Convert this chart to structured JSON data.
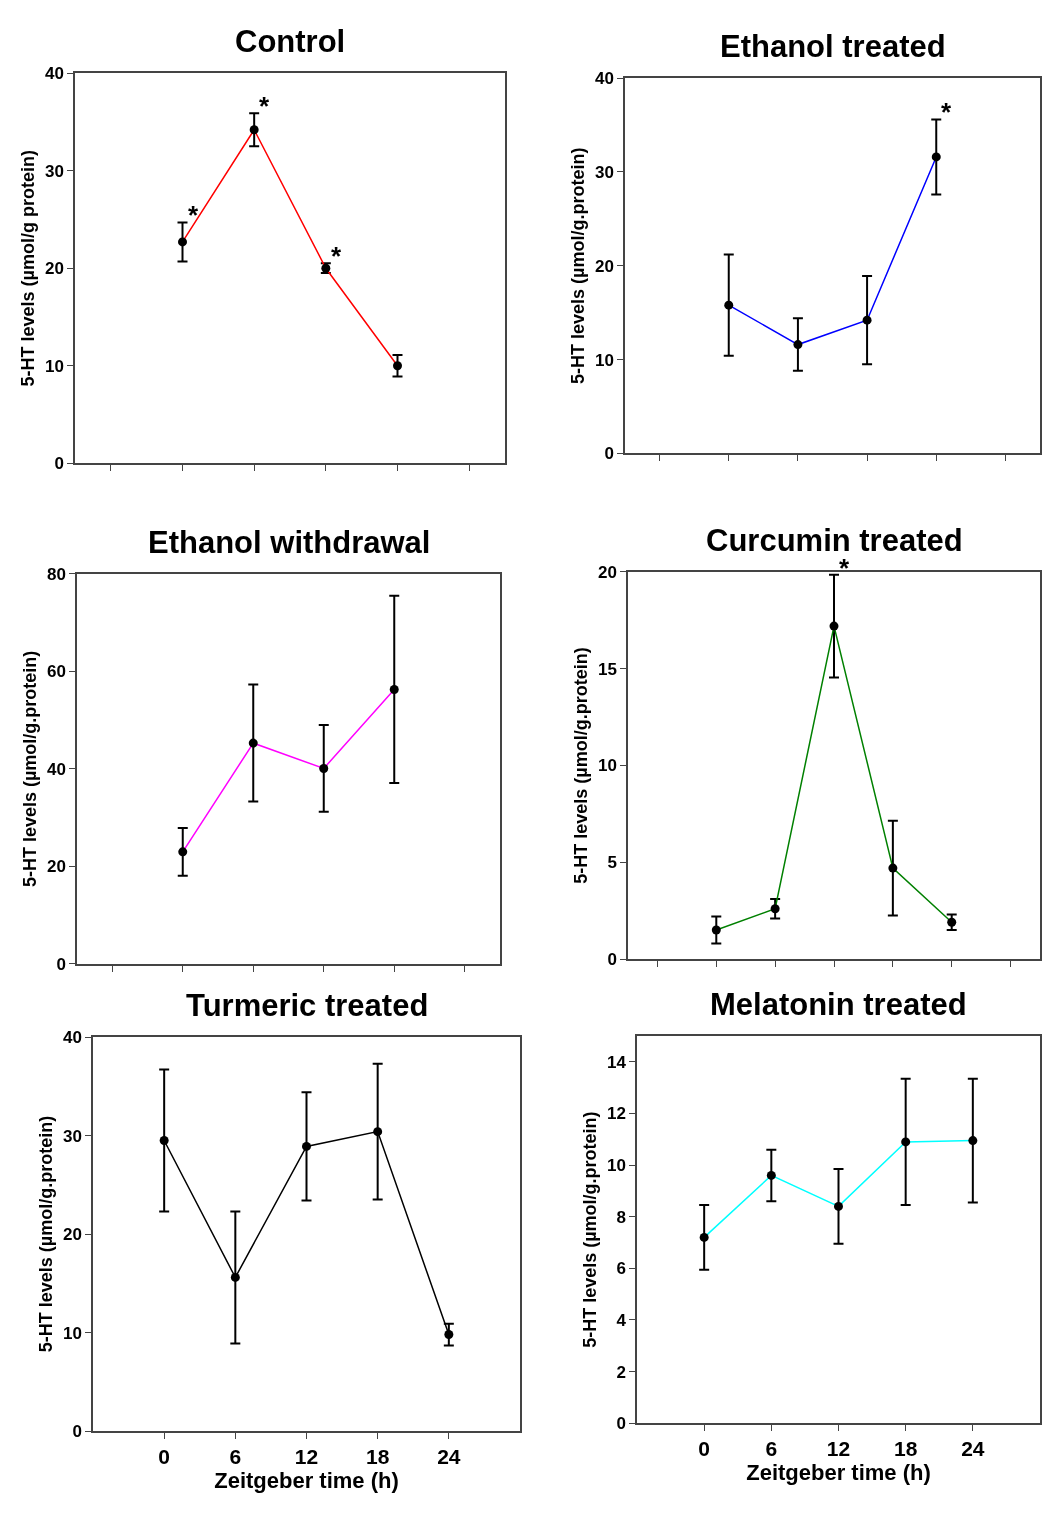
{
  "chart_data": [
    {
      "type": "line",
      "title": "Control",
      "ylabel": "5-HT levels (µmol/g protein)",
      "categories": [
        null,
        null,
        null,
        null,
        null,
        null
      ],
      "values": [
        null,
        22.7,
        34.2,
        20.0,
        10.0,
        null
      ],
      "errors": [
        null,
        2.0,
        1.7,
        0.5,
        1.1,
        null
      ],
      "value_labels": [
        null,
        "*",
        "*",
        "*",
        null,
        null
      ],
      "color": "#ff0000",
      "marker": "circle",
      "ylim": [
        0,
        40
      ],
      "yticks": [
        0,
        10,
        20,
        30,
        40
      ],
      "tick_labels": "y"
    },
    {
      "type": "line",
      "title": "Ethanol treated",
      "ylabel": "5-HT levels (µmol/g.protein)",
      "categories": [
        null,
        null,
        null,
        null,
        null,
        null
      ],
      "values": [
        null,
        15.8,
        11.6,
        14.2,
        31.6,
        null
      ],
      "errors": [
        null,
        5.4,
        2.8,
        4.7,
        4.0,
        null
      ],
      "value_labels": [
        null,
        null,
        null,
        null,
        "*",
        null
      ],
      "color": "#0000ff",
      "marker": "circle",
      "ylim": [
        0,
        40
      ],
      "yticks": [
        0,
        10,
        20,
        30,
        40
      ],
      "tick_labels": "y"
    },
    {
      "type": "line",
      "title": "Ethanol withdrawal",
      "ylabel": "5-HT levels (µmol/g.protein)",
      "categories": [
        null,
        null,
        null,
        null,
        null,
        null
      ],
      "values": [
        null,
        23.0,
        45.3,
        40.1,
        56.3,
        null
      ],
      "errors": [
        null,
        4.9,
        12.0,
        8.9,
        19.2,
        null
      ],
      "color": "#ff00ff",
      "marker": "circle",
      "ylim": [
        0,
        80
      ],
      "yticks": [
        0,
        20,
        40,
        60,
        80
      ],
      "tick_labels": "y"
    },
    {
      "type": "line",
      "title": "Curcumin treated",
      "ylabel": "5-HT levels (µmol/g.protein)",
      "categories": [
        null,
        null,
        null,
        null,
        null,
        null,
        null
      ],
      "values": [
        null,
        1.5,
        2.6,
        17.2,
        4.7,
        1.9,
        null
      ],
      "errors": [
        null,
        0.7,
        0.5,
        2.65,
        2.45,
        0.4,
        null
      ],
      "value_labels": [
        null,
        null,
        null,
        "*",
        null,
        null,
        null
      ],
      "color": "#008000",
      "marker": "circle",
      "ylim": [
        0,
        20
      ],
      "yticks": [
        0,
        5,
        10,
        15,
        20
      ],
      "tick_labels": "y"
    },
    {
      "type": "line",
      "title": "Turmeric treated",
      "xlabel": "Zeitgeber time (h)",
      "ylabel": "5-HT levels (µmol/g.protein)",
      "x": [
        0,
        6,
        12,
        18,
        24
      ],
      "values": [
        29.5,
        15.6,
        28.9,
        30.4,
        9.8
      ],
      "errors": [
        7.2,
        6.7,
        5.5,
        6.9,
        1.1
      ],
      "color": "#000000",
      "marker": "circle",
      "xlim": [
        -6,
        30
      ],
      "xticks": [
        0,
        6,
        12,
        18,
        24
      ],
      "ylim": [
        0,
        40
      ],
      "yticks": [
        0,
        10,
        20,
        30,
        40
      ]
    },
    {
      "type": "line",
      "title": "Melatonin treated",
      "xlabel": "Zeitgeber time (h)",
      "ylabel": "5-HT levels (µmol/g.protein)",
      "x": [
        0,
        6,
        12,
        18,
        24
      ],
      "values": [
        7.2,
        9.6,
        8.4,
        10.9,
        10.95
      ],
      "errors": [
        1.25,
        1.0,
        1.45,
        2.45,
        2.4
      ],
      "color": "#00ffff",
      "marker": "circle",
      "xlim": [
        -6,
        30
      ],
      "xticks": [
        0,
        6,
        12,
        18,
        24
      ],
      "ylim": [
        0,
        15
      ],
      "yticks": [
        0,
        2,
        4,
        6,
        8,
        10,
        12,
        14
      ]
    }
  ]
}
